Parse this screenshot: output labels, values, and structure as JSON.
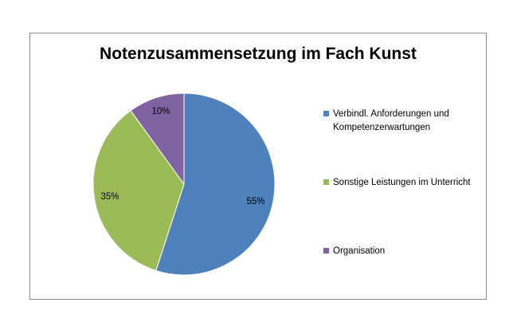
{
  "chart_data": {
    "type": "pie",
    "title": "Notenzusammensetzung im Fach Kunst",
    "slices": [
      {
        "label": "Verbindl. Anforderungen und Kompetenzerwartungen",
        "value": 55,
        "data_label": "55%",
        "color": "#4F81BD"
      },
      {
        "label": "Sonstige Leistungen im Unterricht",
        "value": 35,
        "data_label": "35%",
        "color": "#9BBB59"
      },
      {
        "label": "Organisation",
        "value": 10,
        "data_label": "10%",
        "color": "#8064A2"
      }
    ],
    "legend_position": "right"
  }
}
